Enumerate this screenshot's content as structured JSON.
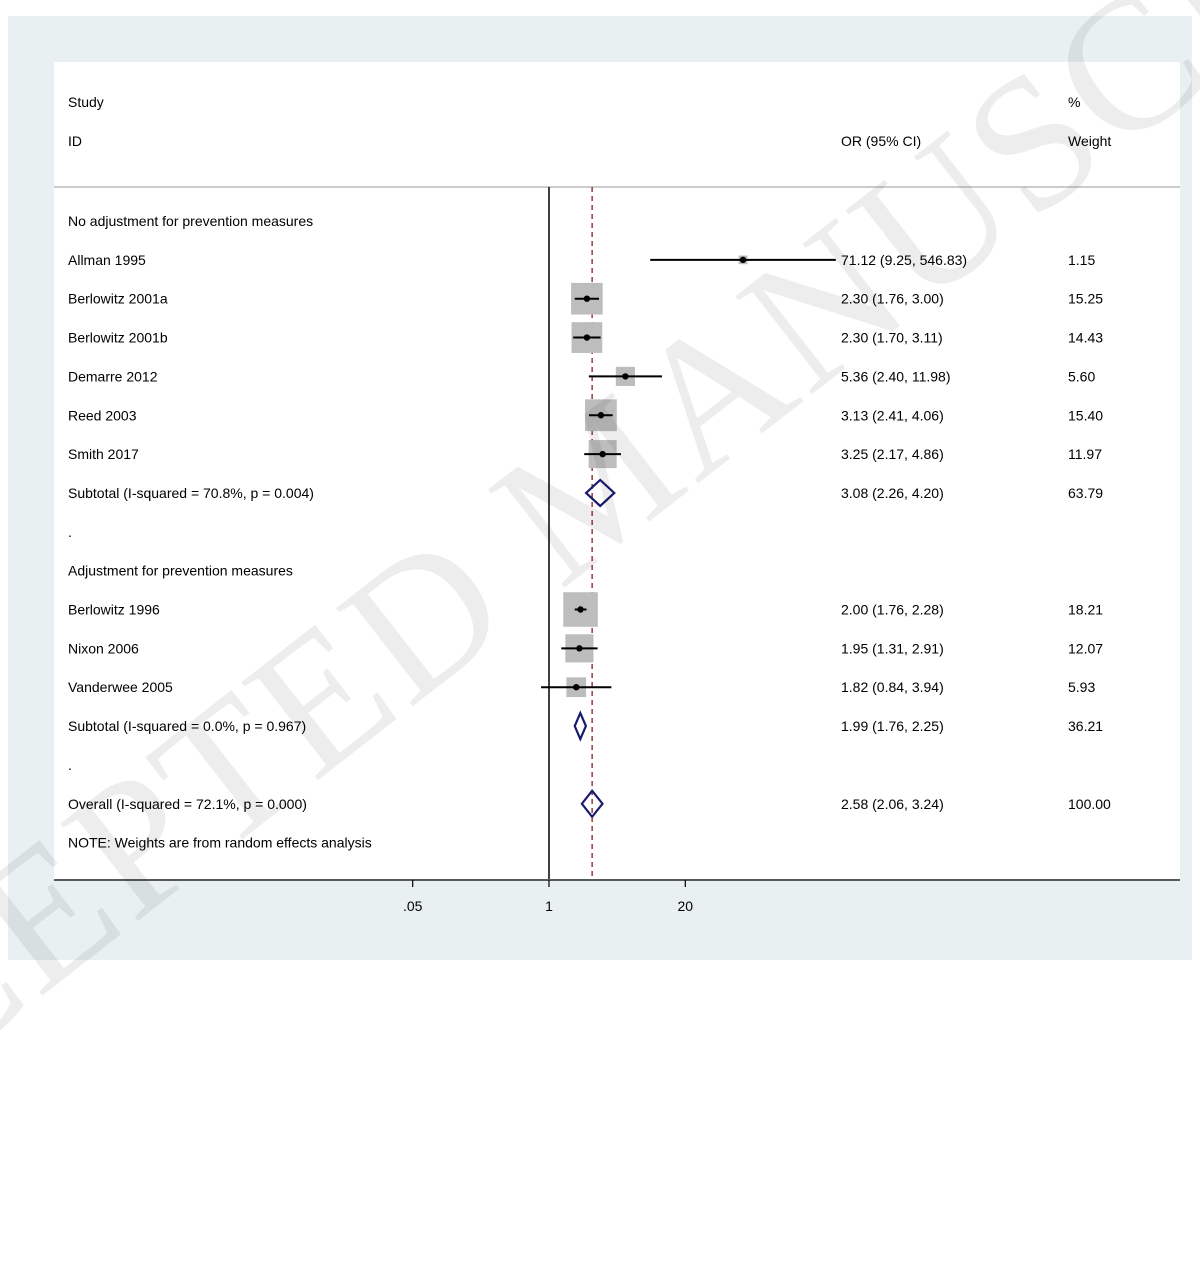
{
  "header": {
    "study_label": "Study",
    "id_label": "ID",
    "or_label": "OR (95% CI)",
    "percent_label": "%",
    "weight_label": "Weight"
  },
  "watermark": "ACCEPTED MANUSCRIPT",
  "colors": {
    "background": "#e9f0f2",
    "square": "#bdbdbd",
    "diamond": "#1a1a6e",
    "overall_line": "#8b1a1a",
    "text": "#000000"
  },
  "chart_data": {
    "type": "forest",
    "x_scale": "log",
    "x_ticks": [
      {
        "value": 0.05,
        "label": ".05"
      },
      {
        "value": 1,
        "label": "1"
      },
      {
        "value": 20,
        "label": "20"
      }
    ],
    "null_value": 1,
    "overall_estimate": 2.58,
    "rows": [
      {
        "kind": "header",
        "label": "No adjustment for prevention measures"
      },
      {
        "kind": "study",
        "label": "Allman 1995",
        "or": 71.12,
        "lo": 9.25,
        "hi": 546.83,
        "ci_text": "71.12 (9.25, 546.83)",
        "weight": "1.15",
        "w": 1.15
      },
      {
        "kind": "study",
        "label": "Berlowitz 2001a",
        "or": 2.3,
        "lo": 1.76,
        "hi": 3.0,
        "ci_text": "2.30 (1.76, 3.00)",
        "weight": "15.25",
        "w": 15.25
      },
      {
        "kind": "study",
        "label": "Berlowitz 2001b",
        "or": 2.3,
        "lo": 1.7,
        "hi": 3.11,
        "ci_text": "2.30 (1.70, 3.11)",
        "weight": "14.43",
        "w": 14.43
      },
      {
        "kind": "study",
        "label": "Demarre 2012",
        "or": 5.36,
        "lo": 2.4,
        "hi": 11.98,
        "ci_text": "5.36 (2.40, 11.98)",
        "weight": "5.60",
        "w": 5.6
      },
      {
        "kind": "study",
        "label": "Reed 2003",
        "or": 3.13,
        "lo": 2.41,
        "hi": 4.06,
        "ci_text": "3.13 (2.41, 4.06)",
        "weight": "15.40",
        "w": 15.4
      },
      {
        "kind": "study",
        "label": "Smith 2017",
        "or": 3.25,
        "lo": 2.17,
        "hi": 4.86,
        "ci_text": "3.25 (2.17, 4.86)",
        "weight": "11.97",
        "w": 11.97
      },
      {
        "kind": "subtotal",
        "label": "Subtotal  (I-squared = 70.8%, p = 0.004)",
        "or": 3.08,
        "lo": 2.26,
        "hi": 4.2,
        "ci_text": "3.08 (2.26, 4.20)",
        "weight": "63.79"
      },
      {
        "kind": "spacer",
        "label": "."
      },
      {
        "kind": "header",
        "label": "Adjustment for prevention measures"
      },
      {
        "kind": "study",
        "label": "Berlowitz 1996",
        "or": 2.0,
        "lo": 1.76,
        "hi": 2.28,
        "ci_text": "2.00 (1.76, 2.28)",
        "weight": "18.21",
        "w": 18.21
      },
      {
        "kind": "study",
        "label": "Nixon 2006",
        "or": 1.95,
        "lo": 1.31,
        "hi": 2.91,
        "ci_text": "1.95 (1.31, 2.91)",
        "weight": "12.07",
        "w": 12.07
      },
      {
        "kind": "study",
        "label": "Vanderwee 2005",
        "or": 1.82,
        "lo": 0.84,
        "hi": 3.94,
        "ci_text": "1.82 (0.84, 3.94)",
        "weight": "5.93",
        "w": 5.93
      },
      {
        "kind": "subtotal",
        "label": "Subtotal  (I-squared = 0.0%, p = 0.967)",
        "or": 1.99,
        "lo": 1.76,
        "hi": 2.25,
        "ci_text": "1.99 (1.76, 2.25)",
        "weight": "36.21"
      },
      {
        "kind": "spacer",
        "label": "."
      },
      {
        "kind": "overall",
        "label": "Overall  (I-squared = 72.1%, p = 0.000)",
        "or": 2.58,
        "lo": 2.06,
        "hi": 3.24,
        "ci_text": "2.58 (2.06, 3.24)",
        "weight": "100.00"
      },
      {
        "kind": "note",
        "label": "NOTE: Weights are from random effects analysis"
      }
    ]
  }
}
